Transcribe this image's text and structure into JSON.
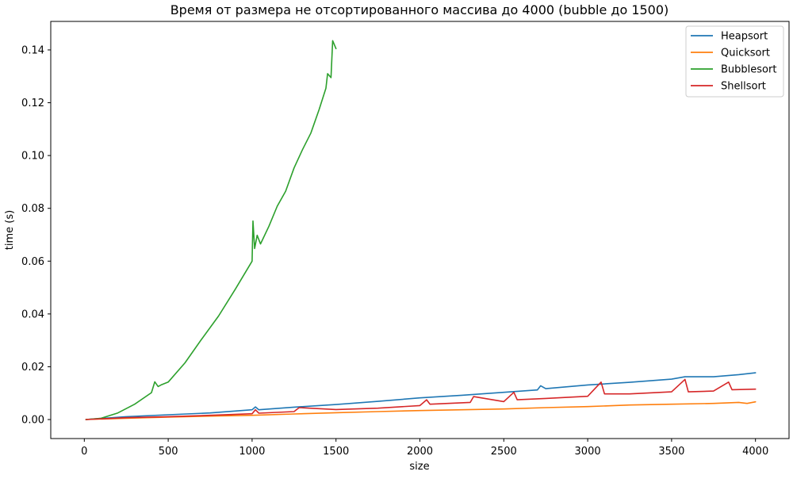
{
  "chart_data": {
    "type": "line",
    "title": "Время от размера не отсортированного массива до 4000 (bubble до 1500)",
    "xlabel": "size",
    "ylabel": "time (s)",
    "xlim": [
      -200,
      4200
    ],
    "ylim": [
      -0.0072,
      0.1508
    ],
    "xticks": [
      0,
      500,
      1000,
      1500,
      2000,
      2500,
      3000,
      3500,
      4000
    ],
    "xtick_labels": [
      "0",
      "500",
      "1000",
      "1500",
      "2000",
      "2500",
      "3000",
      "3500",
      "4000"
    ],
    "yticks": [
      0.0,
      0.02,
      0.04,
      0.06,
      0.08,
      0.1,
      0.12,
      0.14
    ],
    "ytick_labels": [
      "0.00",
      "0.02",
      "0.04",
      "0.06",
      "0.08",
      "0.10",
      "0.12",
      "0.14"
    ],
    "grid": false,
    "legend_position": "top-right",
    "series": [
      {
        "name": "Heapsort",
        "color": "#1f77b4",
        "x": [
          10,
          250,
          500,
          750,
          1000,
          1020,
          1040,
          1250,
          1500,
          1750,
          2000,
          2250,
          2500,
          2700,
          2720,
          2750,
          3000,
          3250,
          3500,
          3580,
          3750,
          3900,
          4000
        ],
        "y": [
          0.0,
          0.0011,
          0.0018,
          0.0025,
          0.0037,
          0.0048,
          0.0037,
          0.0047,
          0.0057,
          0.0069,
          0.0082,
          0.0092,
          0.0103,
          0.0112,
          0.0128,
          0.0117,
          0.0131,
          0.0141,
          0.0153,
          0.0162,
          0.0162,
          0.017,
          0.0177
        ]
      },
      {
        "name": "Quicksort",
        "color": "#ff7f0e",
        "x": [
          10,
          250,
          500,
          750,
          1000,
          1250,
          1500,
          1750,
          2000,
          2250,
          2500,
          2750,
          3000,
          3250,
          3500,
          3750,
          3900,
          3950,
          4000
        ],
        "y": [
          0.0,
          0.0005,
          0.0009,
          0.0013,
          0.0016,
          0.0021,
          0.0026,
          0.003,
          0.0034,
          0.0037,
          0.004,
          0.0045,
          0.0049,
          0.0055,
          0.0058,
          0.0061,
          0.0065,
          0.0061,
          0.0067
        ]
      },
      {
        "name": "Bubblesort",
        "color": "#2ca02c",
        "x": [
          10,
          100,
          200,
          300,
          400,
          420,
          440,
          460,
          500,
          600,
          700,
          800,
          900,
          1000,
          1005,
          1015,
          1030,
          1050,
          1100,
          1150,
          1200,
          1250,
          1300,
          1350,
          1400,
          1440,
          1450,
          1470,
          1480,
          1500
        ],
        "y": [
          0.0,
          0.0005,
          0.0025,
          0.0058,
          0.0102,
          0.0143,
          0.0125,
          0.0132,
          0.0142,
          0.0215,
          0.0305,
          0.0392,
          0.0494,
          0.06,
          0.0752,
          0.0648,
          0.0698,
          0.0665,
          0.0732,
          0.0808,
          0.0865,
          0.0953,
          0.1022,
          0.1085,
          0.1175,
          0.1255,
          0.131,
          0.1295,
          0.1435,
          0.1405
        ]
      },
      {
        "name": "Shellsort",
        "color": "#d62728",
        "x": [
          10,
          250,
          500,
          750,
          1000,
          1020,
          1040,
          1250,
          1280,
          1500,
          1750,
          2000,
          2040,
          2060,
          2300,
          2320,
          2500,
          2560,
          2580,
          2750,
          3000,
          3080,
          3100,
          3250,
          3500,
          3580,
          3600,
          3750,
          3840,
          3860,
          4000
        ],
        "y": [
          0.0,
          0.0007,
          0.0011,
          0.0016,
          0.0022,
          0.0037,
          0.0024,
          0.003,
          0.0045,
          0.0038,
          0.0043,
          0.0053,
          0.0075,
          0.0058,
          0.0065,
          0.0087,
          0.0068,
          0.0103,
          0.0075,
          0.008,
          0.0088,
          0.0142,
          0.0097,
          0.0097,
          0.0105,
          0.0152,
          0.0105,
          0.0108,
          0.0142,
          0.0113,
          0.0115
        ]
      }
    ]
  }
}
